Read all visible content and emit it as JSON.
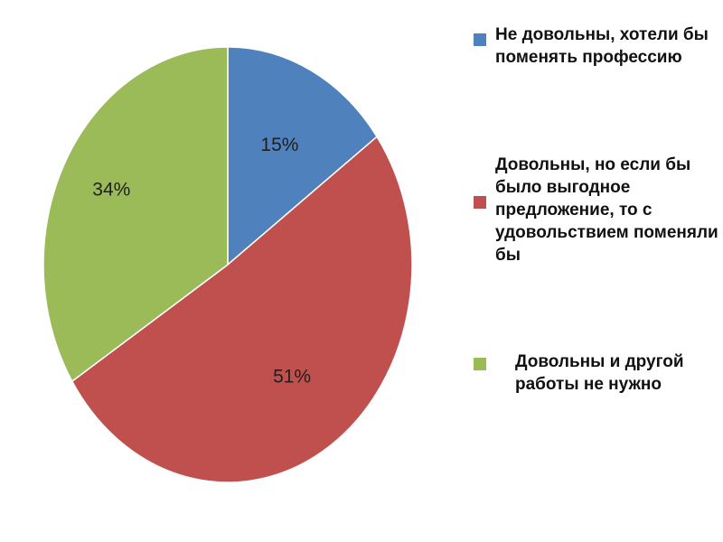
{
  "chart_data": {
    "type": "pie",
    "categories": [
      "Не довольны, хотели бы поменять профессию",
      "Довольны, но если бы было выгодное предложение, то с удовольствием поменяли бы",
      "Довольны и другой работы не нужно"
    ],
    "values": [
      15,
      51,
      34
    ],
    "labels": [
      "15%",
      "51%",
      "34%"
    ],
    "colors": [
      "#4f81bd",
      "#c0504d",
      "#9bbb59"
    ],
    "legend_position": "right"
  }
}
